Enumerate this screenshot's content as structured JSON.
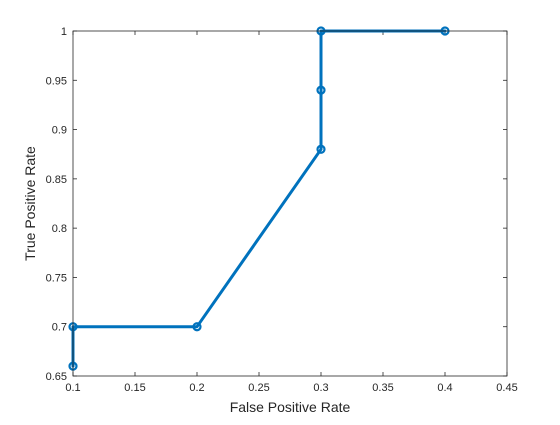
{
  "chart_data": {
    "type": "line",
    "title": "",
    "xlabel": "False Positive Rate",
    "ylabel": "True Positive Rate",
    "xlim": [
      0.1,
      0.45
    ],
    "ylim": [
      0.65,
      1.0
    ],
    "xticks": [
      "0.1",
      "0.15",
      "0.2",
      "0.25",
      "0.3",
      "0.35",
      "0.4",
      "0.45"
    ],
    "yticks": [
      "0.65",
      "0.7",
      "0.75",
      "0.8",
      "0.85",
      "0.9",
      "0.95",
      "1"
    ],
    "grid": false,
    "legend": "none",
    "series": [
      {
        "color": "#0072BD",
        "marker": "circle",
        "x": [
          0.1,
          0.1,
          0.2,
          0.3,
          0.3,
          0.3,
          0.4
        ],
        "y": [
          0.66,
          0.7,
          0.7,
          0.88,
          0.94,
          1.0,
          1.0
        ]
      }
    ]
  }
}
